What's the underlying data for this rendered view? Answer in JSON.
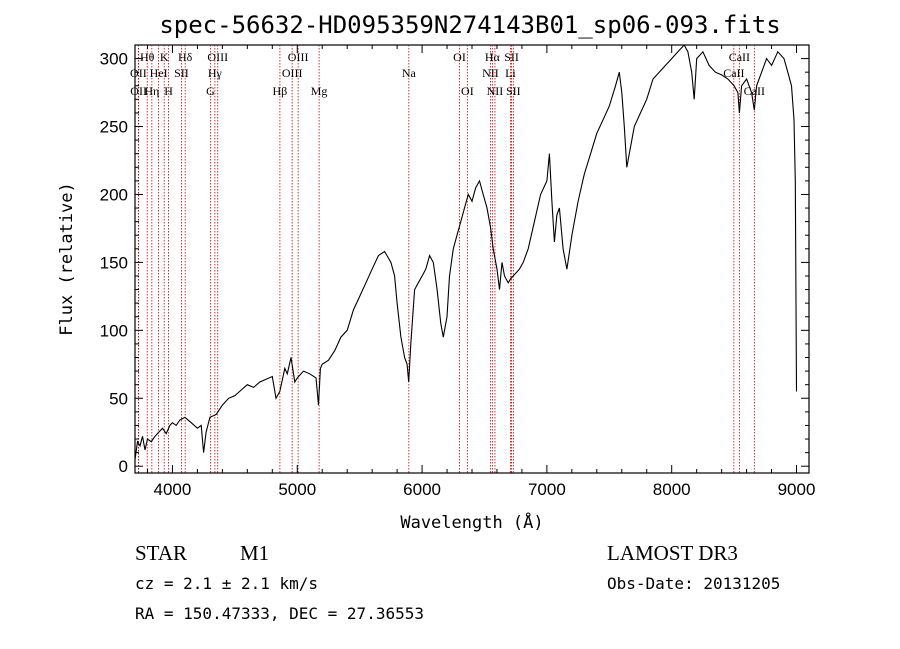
{
  "colors": {
    "line_marker": "#cc0000",
    "spectrum": "#000000",
    "axis": "#000000"
  },
  "info": {
    "class_label": "STAR",
    "subclass_label": "M1",
    "redshift_text": "cz = 2.1 ± 2.1 km/s",
    "coords_text": "RA = 150.47333, DEC =  27.36553",
    "survey_label": "LAMOST DR3",
    "obs_date_text": "Obs-Date: 20131205"
  },
  "chart_data": {
    "type": "line",
    "title": "spec-56632-HD095359N274143B01_sp06-093.fits",
    "xlabel": "Wavelength (Å)",
    "ylabel": "Flux (relative)",
    "xlim": [
      3700,
      9100
    ],
    "ylim": [
      -5,
      310
    ],
    "xticks": [
      4000,
      5000,
      6000,
      7000,
      8000,
      9000
    ],
    "yticks": [
      0,
      50,
      100,
      150,
      200,
      250,
      300
    ],
    "series": [
      {
        "name": "spectrum",
        "x": [
          3700,
          3720,
          3740,
          3760,
          3780,
          3800,
          3830,
          3860,
          3890,
          3920,
          3950,
          3980,
          4000,
          4030,
          4060,
          4100,
          4150,
          4200,
          4230,
          4250,
          4270,
          4300,
          4350,
          4400,
          4450,
          4500,
          4550,
          4600,
          4650,
          4700,
          4750,
          4800,
          4830,
          4860,
          4900,
          4920,
          4950,
          4980,
          5000,
          5050,
          5100,
          5150,
          5170,
          5185,
          5200,
          5250,
          5300,
          5350,
          5400,
          5450,
          5500,
          5550,
          5600,
          5650,
          5700,
          5750,
          5780,
          5800,
          5830,
          5860,
          5880,
          5893,
          5910,
          5940,
          5970,
          6000,
          6030,
          6060,
          6090,
          6120,
          6150,
          6170,
          6200,
          6220,
          6250,
          6280,
          6310,
          6340,
          6370,
          6400,
          6430,
          6460,
          6490,
          6520,
          6550,
          6570,
          6600,
          6620,
          6640,
          6660,
          6690,
          6710,
          6730,
          6750,
          6780,
          6810,
          6850,
          6900,
          6950,
          7000,
          7020,
          7040,
          7060,
          7080,
          7100,
          7130,
          7160,
          7200,
          7250,
          7300,
          7350,
          7400,
          7450,
          7500,
          7550,
          7580,
          7600,
          7620,
          7640,
          7660,
          7680,
          7700,
          7750,
          7800,
          7850,
          7900,
          7950,
          8000,
          8050,
          8100,
          8130,
          8160,
          8180,
          8200,
          8250,
          8300,
          8350,
          8400,
          8450,
          8500,
          8530,
          8542,
          8560,
          8600,
          8640,
          8662,
          8680,
          8720,
          8760,
          8800,
          8850,
          8900,
          8930,
          8960,
          8980,
          8990,
          9000
        ],
        "values": [
          5,
          18,
          15,
          22,
          12,
          20,
          18,
          22,
          25,
          28,
          24,
          30,
          32,
          30,
          34,
          36,
          32,
          28,
          30,
          10,
          25,
          36,
          38,
          45,
          50,
          52,
          56,
          60,
          58,
          62,
          64,
          66,
          50,
          55,
          72,
          68,
          80,
          62,
          65,
          70,
          68,
          65,
          45,
          72,
          75,
          78,
          85,
          95,
          100,
          115,
          125,
          135,
          145,
          155,
          158,
          150,
          140,
          120,
          95,
          80,
          75,
          62,
          90,
          130,
          135,
          140,
          145,
          155,
          150,
          130,
          105,
          95,
          110,
          140,
          160,
          170,
          180,
          190,
          200,
          195,
          205,
          210,
          200,
          190,
          175,
          160,
          145,
          130,
          150,
          140,
          135,
          138,
          140,
          142,
          145,
          150,
          160,
          180,
          200,
          210,
          230,
          195,
          165,
          185,
          190,
          160,
          145,
          170,
          195,
          215,
          230,
          245,
          255,
          265,
          280,
          290,
          275,
          250,
          220,
          230,
          240,
          250,
          260,
          270,
          285,
          290,
          295,
          300,
          305,
          310,
          305,
          290,
          270,
          300,
          305,
          295,
          290,
          288,
          285,
          280,
          275,
          260,
          280,
          285,
          275,
          262,
          280,
          290,
          300,
          295,
          305,
          300,
          290,
          280,
          255,
          210,
          55
        ]
      }
    ],
    "emission_lines": [
      {
        "label": "Hθ",
        "wavelength": 3798,
        "row": 0
      },
      {
        "label": "OII",
        "wavelength": 3727,
        "row": 1
      },
      {
        "label": "OII",
        "wavelength": 3729,
        "row": 2
      },
      {
        "label": "Hη",
        "wavelength": 3835,
        "row": 2
      },
      {
        "label": "HeI",
        "wavelength": 3889,
        "row": 1
      },
      {
        "label": "K",
        "wavelength": 3934,
        "row": 0
      },
      {
        "label": "H",
        "wavelength": 3969,
        "row": 2
      },
      {
        "label": "SII",
        "wavelength": 4072,
        "row": 1
      },
      {
        "label": "Hδ",
        "wavelength": 4102,
        "row": 0
      },
      {
        "label": "OIII",
        "wavelength": 4363,
        "row": 0
      },
      {
        "label": "Hγ",
        "wavelength": 4340,
        "row": 1
      },
      {
        "label": "G",
        "wavelength": 4305,
        "row": 2
      },
      {
        "label": "Hβ",
        "wavelength": 4861,
        "row": 2
      },
      {
        "label": "OIII",
        "wavelength": 5007,
        "row": 0
      },
      {
        "label": "OIII",
        "wavelength": 4959,
        "row": 1
      },
      {
        "label": "Mg",
        "wavelength": 5175,
        "row": 2
      },
      {
        "label": "Na",
        "wavelength": 5894,
        "row": 1
      },
      {
        "label": "OI",
        "wavelength": 6300,
        "row": 0
      },
      {
        "label": "OI",
        "wavelength": 6363,
        "row": 2
      },
      {
        "label": "Hα",
        "wavelength": 6563,
        "row": 0
      },
      {
        "label": "NII",
        "wavelength": 6548,
        "row": 1
      },
      {
        "label": "NII",
        "wavelength": 6584,
        "row": 2
      },
      {
        "label": "SII",
        "wavelength": 6717,
        "row": 0
      },
      {
        "label": "Li",
        "wavelength": 6708,
        "row": 1
      },
      {
        "label": "SII",
        "wavelength": 6731,
        "row": 2
      },
      {
        "label": "CaII",
        "wavelength": 8542,
        "row": 0
      },
      {
        "label": "CaII",
        "wavelength": 8498,
        "row": 1
      },
      {
        "label": "CaII",
        "wavelength": 8662,
        "row": 2
      }
    ]
  }
}
